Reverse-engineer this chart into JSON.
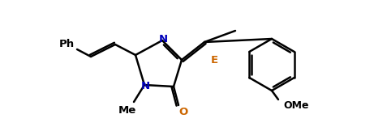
{
  "background": "#ffffff",
  "line_color": "#000000",
  "line_width": 1.8,
  "label_N": "N",
  "label_O": "O",
  "label_Me": "Me",
  "label_Ph": "Ph",
  "label_E": "E",
  "label_OMe": "OMe",
  "color_N": "#0000bb",
  "color_O": "#cc6600",
  "color_E": "#cc6600",
  "color_black": "#000000",
  "figsize": [
    4.61,
    1.57
  ],
  "dpi": 100
}
